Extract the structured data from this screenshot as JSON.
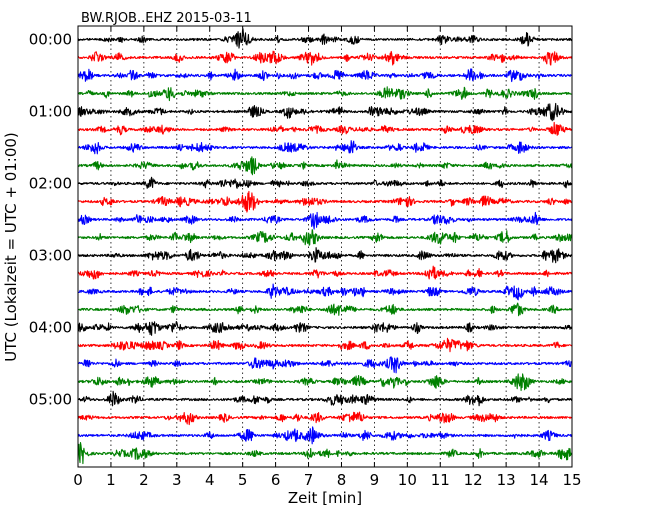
{
  "chart_data": {
    "type": "line",
    "title": "BW.RJOB..EHZ 2015-03-11",
    "xlabel": "Zeit  [min]",
    "ylabel": "UTC (Lokalzeit = UTC + 01:00)",
    "xlim": [
      0,
      15
    ],
    "x_ticks": [
      "0",
      "1",
      "2",
      "3",
      "4",
      "5",
      "6",
      "7",
      "8",
      "9",
      "10",
      "11",
      "12",
      "13",
      "14",
      "15"
    ],
    "y_ticks": [
      "00:00",
      "01:00",
      "02:00",
      "03:00",
      "04:00",
      "05:00"
    ],
    "minutes_per_line": 15,
    "line_count": 24,
    "line_colors": [
      "#000000",
      "#ff0000",
      "#0000ff",
      "#008000"
    ],
    "grid": "vertical dotted lines at each minute",
    "legend": "none"
  }
}
